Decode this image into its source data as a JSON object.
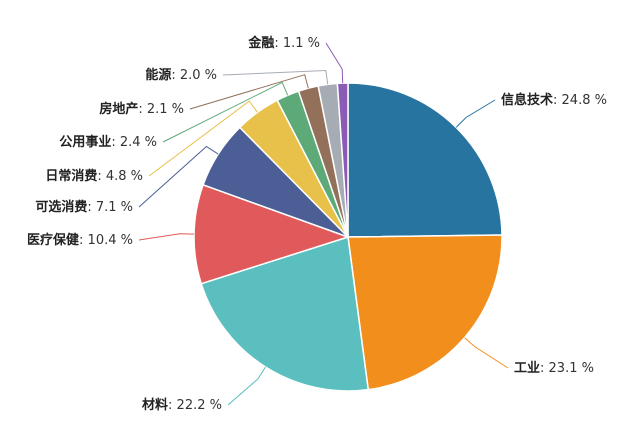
{
  "chart_data": {
    "type": "pie",
    "title": "",
    "value_suffix": " %",
    "slices": [
      {
        "name": "信息技术",
        "value": 24.8,
        "color": "#2774a0",
        "display": "24.8"
      },
      {
        "name": "工业",
        "value": 23.1,
        "color": "#f28e1c",
        "display": "23.1"
      },
      {
        "name": "材料",
        "value": 22.2,
        "color": "#5bbfbf",
        "display": "22.2"
      },
      {
        "name": "医疗保健",
        "value": 10.4,
        "color": "#e05a5b",
        "display": "10.4"
      },
      {
        "name": "可选消费",
        "value": 7.1,
        "color": "#4b5f96",
        "display": "7.1"
      },
      {
        "name": "日常消费",
        "value": 4.8,
        "color": "#e8c14a",
        "display": "4.8"
      },
      {
        "name": "公用事业",
        "value": 2.4,
        "color": "#5daa78",
        "display": "2.4"
      },
      {
        "name": "房地产",
        "value": 2.1,
        "color": "#93705a",
        "display": "2.1"
      },
      {
        "name": "能源",
        "value": 2.0,
        "color": "#a6acb4",
        "display": "2.0"
      },
      {
        "name": "金融",
        "value": 1.1,
        "color": "#8b5bb5",
        "display": "1.1"
      }
    ]
  }
}
